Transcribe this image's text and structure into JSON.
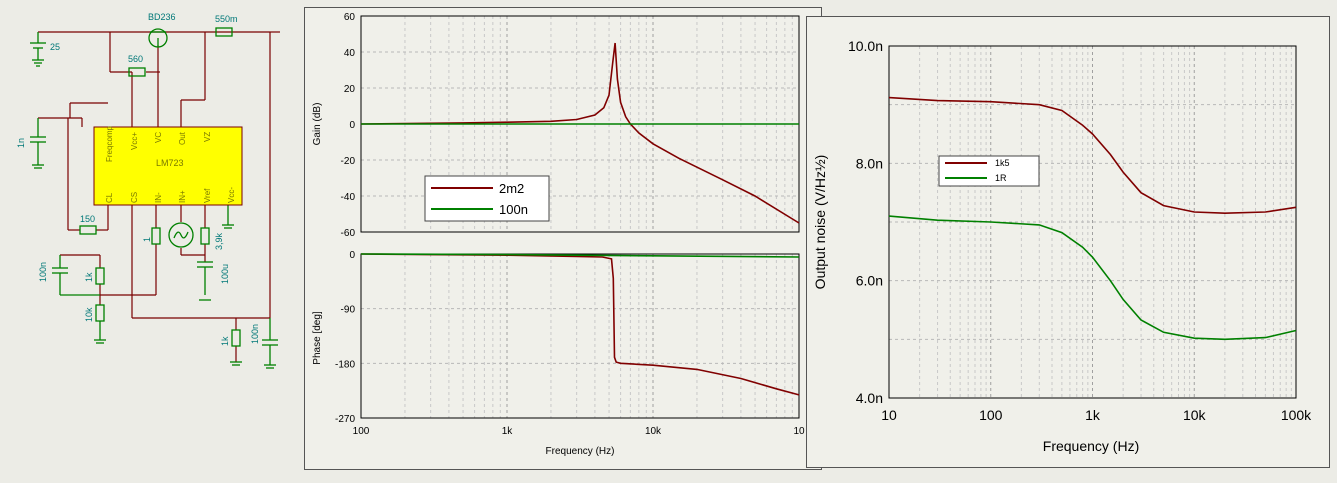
{
  "schematic": {
    "labels": {
      "transistor": "BD236",
      "r_out": "550m",
      "battery": "25",
      "r_base": "560",
      "cap_comp": "1n",
      "chip": "LM723",
      "r_cl": "150",
      "r_in": "1",
      "r_vref": "3,9k",
      "cap_vref": "100u",
      "cap_cs": "100n",
      "r_cs1": "1k",
      "r_cs2": "10k",
      "r_out_load": "1k",
      "cap_out": "100n"
    },
    "pins": [
      "Freqcomp",
      "Vcc+",
      "VC",
      "Out",
      "VZ",
      "CL",
      "CS",
      "IN-",
      "IN+",
      "Vref",
      "Vcc-"
    ],
    "colors": {
      "wire": "#7a0000",
      "component": "#008000",
      "chip_fill": "#ffff00",
      "label": "#007878"
    }
  },
  "chart_data": [
    {
      "type": "line",
      "panel": "gain",
      "xscale": "log",
      "xlim": [
        100,
        100000
      ],
      "x_ticks": [
        "100",
        "1k",
        "10k",
        "10"
      ],
      "ylabel": "Gain (dB)",
      "ylim": [
        -60,
        60
      ],
      "y_ticks": [
        "60",
        "40",
        "20",
        "0",
        "-20",
        "-40",
        "-60"
      ],
      "grid": true,
      "legend": "inside-left",
      "series": [
        {
          "name": "2m2",
          "color": "#800000",
          "x": [
            100,
            200,
            500,
            1000,
            2000,
            3000,
            4000,
            4600,
            5000,
            5300,
            5500,
            5700,
            6000,
            6500,
            7000,
            8000,
            10000,
            15000,
            20000,
            30000,
            50000,
            100000
          ],
          "y": [
            0,
            0.2,
            0.6,
            1,
            1.5,
            2.5,
            5,
            9,
            16,
            34,
            45,
            25,
            12,
            4,
            0,
            -5,
            -11,
            -19,
            -24,
            -31,
            -40,
            -55
          ]
        },
        {
          "name": "100n",
          "color": "#008000",
          "x": [
            100,
            1000,
            10000,
            100000
          ],
          "y": [
            0,
            0,
            0,
            0
          ]
        }
      ]
    },
    {
      "type": "line",
      "panel": "phase",
      "xscale": "log",
      "xlim": [
        100,
        100000
      ],
      "x_ticks": [
        "100",
        "1k",
        "10k",
        "10"
      ],
      "xlabel": "Frequency (Hz)",
      "ylabel": "Phase [deg]",
      "ylim": [
        -270,
        0
      ],
      "y_ticks": [
        "0",
        "-90",
        "-180",
        "-270"
      ],
      "grid": true,
      "series": [
        {
          "name": "2m2",
          "color": "#800000",
          "x": [
            100,
            1000,
            3000,
            4500,
            5200,
            5350,
            5450,
            5600,
            6000,
            10000,
            20000,
            40000,
            70000,
            100000
          ],
          "y": [
            0,
            -2,
            -4,
            -5,
            -8,
            -40,
            -170,
            -178,
            -180,
            -183,
            -190,
            -205,
            -222,
            -232
          ]
        },
        {
          "name": "100n",
          "color": "#008000",
          "x": [
            100,
            1000,
            10000,
            100000
          ],
          "y": [
            0,
            -1,
            -3,
            -5
          ]
        }
      ]
    },
    {
      "type": "line",
      "panel": "noise",
      "xscale": "log",
      "xlim": [
        10,
        100000
      ],
      "x_ticks": [
        "10",
        "100",
        "1k",
        "10k",
        "100k"
      ],
      "xlabel": "Frequency (Hz)",
      "ylabel": "Output noise (V/Hz½)",
      "ylim": [
        4,
        10
      ],
      "y_ticks": [
        "10.0n",
        "8.0n",
        "6.0n",
        "4.0n"
      ],
      "grid": true,
      "legend": "inside-left",
      "series": [
        {
          "name": "1k5",
          "color": "#800000",
          "x": [
            10,
            30,
            100,
            300,
            500,
            800,
            1000,
            1500,
            2000,
            3000,
            5000,
            10000,
            20000,
            50000,
            100000
          ],
          "y": [
            9.12,
            9.07,
            9.05,
            9.0,
            8.9,
            8.65,
            8.5,
            8.15,
            7.85,
            7.5,
            7.28,
            7.17,
            7.15,
            7.17,
            7.25
          ]
        },
        {
          "name": "1R",
          "color": "#008000",
          "x": [
            10,
            30,
            100,
            300,
            500,
            800,
            1000,
            1500,
            2000,
            3000,
            5000,
            10000,
            20000,
            50000,
            100000
          ],
          "y": [
            7.1,
            7.03,
            7.0,
            6.95,
            6.82,
            6.57,
            6.4,
            6.0,
            5.68,
            5.33,
            5.12,
            5.02,
            5.0,
            5.03,
            5.15
          ]
        }
      ]
    }
  ]
}
